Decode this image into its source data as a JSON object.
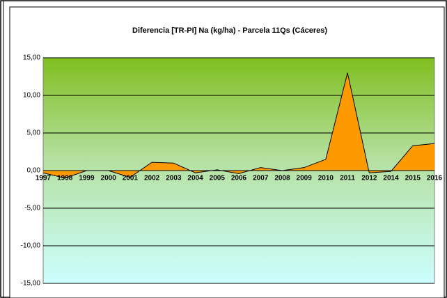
{
  "chart_data": {
    "type": "area",
    "title": "Diferencia [TR-PI] Na (kg/ha) - Parcela 11Qs (Cáceres)",
    "categories": [
      "1997",
      "1998",
      "1999",
      "2000",
      "2001",
      "2002",
      "2003",
      "2004",
      "2005",
      "2006",
      "2007",
      "2008",
      "2009",
      "2010",
      "2011",
      "2012",
      "2014",
      "2015",
      "2016"
    ],
    "series": [
      {
        "name": "Diferencia",
        "color": "#ff9900",
        "values": [
          -0.3,
          -1.0,
          0,
          0,
          -0.9,
          1.1,
          1.0,
          -0.3,
          0.1,
          -0.4,
          0.4,
          0,
          0.4,
          1.5,
          13.0,
          -0.3,
          -0.1,
          3.3,
          3.6
        ]
      }
    ],
    "ylim": [
      -15,
      15
    ],
    "yticks": [
      {
        "value": -15,
        "label": "-15,00"
      },
      {
        "value": -10,
        "label": "-10,00"
      },
      {
        "value": -5,
        "label": "-5,00"
      },
      {
        "value": 0,
        "label": "0,00"
      },
      {
        "value": 5,
        "label": "5,00"
      },
      {
        "value": 10,
        "label": "10,00"
      },
      {
        "value": 15,
        "label": "15,00"
      }
    ],
    "grid": true
  }
}
